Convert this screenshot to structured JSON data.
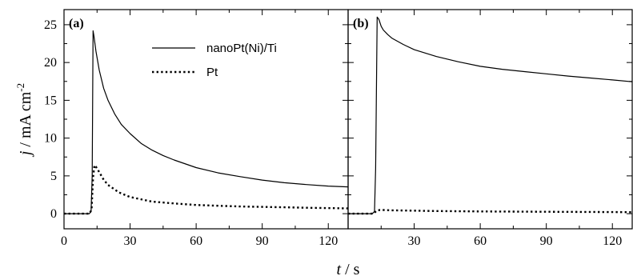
{
  "chart_data": [
    {
      "type": "line",
      "panel_label": "(a)",
      "xlabel_var": "t",
      "xlabel_unit": " / s",
      "ylabel_var": "j",
      "ylabel_unit": " / mA cm",
      "ylabel_exp": "-2",
      "xlim": [
        0,
        129
      ],
      "ylim": [
        -2,
        27
      ],
      "x_ticks": [
        0,
        30,
        60,
        90,
        120
      ],
      "y_ticks": [
        0,
        5,
        10,
        15,
        20,
        25
      ],
      "grid": false,
      "legend": {
        "position": "top-right"
      },
      "series": [
        {
          "name": "nanoPt(Ni)/Ti",
          "style": "solid",
          "color": "#000000",
          "points": [
            [
              0,
              0
            ],
            [
              11.5,
              0
            ],
            [
              12.3,
              0.3
            ],
            [
              12.8,
              5
            ],
            [
              13.2,
              24.2
            ],
            [
              13.6,
              23.5
            ],
            [
              14.5,
              21.5
            ],
            [
              16,
              19
            ],
            [
              18,
              16.6
            ],
            [
              20,
              15
            ],
            [
              23,
              13.2
            ],
            [
              26,
              11.8
            ],
            [
              30,
              10.6
            ],
            [
              35,
              9.3
            ],
            [
              40,
              8.4
            ],
            [
              45,
              7.7
            ],
            [
              50,
              7.1
            ],
            [
              60,
              6.1
            ],
            [
              70,
              5.4
            ],
            [
              80,
              4.9
            ],
            [
              90,
              4.45
            ],
            [
              100,
              4.1
            ],
            [
              110,
              3.85
            ],
            [
              120,
              3.65
            ],
            [
              129,
              3.55
            ]
          ]
        },
        {
          "name": "Pt",
          "style": "dotted",
          "color": "#000000",
          "points": [
            [
              0,
              0
            ],
            [
              11.5,
              0
            ],
            [
              12.5,
              0.5
            ],
            [
              13.2,
              4.8
            ],
            [
              13.8,
              6.4
            ],
            [
              14.5,
              6.2
            ],
            [
              16,
              5.5
            ],
            [
              18,
              4.5
            ],
            [
              20,
              3.8
            ],
            [
              25,
              2.8
            ],
            [
              30,
              2.2
            ],
            [
              40,
              1.6
            ],
            [
              50,
              1.35
            ],
            [
              60,
              1.15
            ],
            [
              70,
              1.05
            ],
            [
              80,
              0.95
            ],
            [
              90,
              0.9
            ],
            [
              100,
              0.85
            ],
            [
              110,
              0.78
            ],
            [
              120,
              0.74
            ],
            [
              129,
              0.7
            ]
          ]
        }
      ]
    },
    {
      "type": "line",
      "panel_label": "(b)",
      "xlim": [
        0,
        129
      ],
      "ylim": [
        -2,
        27
      ],
      "x_ticks": [
        0,
        30,
        60,
        90,
        120
      ],
      "grid": false,
      "series": [
        {
          "name": "nanoPt(Ni)/Ti",
          "style": "solid",
          "color": "#000000",
          "points": [
            [
              0,
              0
            ],
            [
              11,
              0
            ],
            [
              12,
              0.3
            ],
            [
              12.5,
              6
            ],
            [
              13.2,
              26
            ],
            [
              14,
              25.7
            ],
            [
              15,
              24.8
            ],
            [
              16,
              24.3
            ],
            [
              18,
              23.7
            ],
            [
              20,
              23.2
            ],
            [
              25,
              22.4
            ],
            [
              30,
              21.7
            ],
            [
              40,
              20.8
            ],
            [
              50,
              20.1
            ],
            [
              60,
              19.5
            ],
            [
              70,
              19.1
            ],
            [
              80,
              18.8
            ],
            [
              90,
              18.5
            ],
            [
              100,
              18.2
            ],
            [
              110,
              17.95
            ],
            [
              120,
              17.7
            ],
            [
              129,
              17.45
            ]
          ]
        },
        {
          "name": "Pt",
          "style": "dotted",
          "color": "#000000",
          "points": [
            [
              0,
              0
            ],
            [
              11.5,
              0
            ],
            [
              13,
              0.4
            ],
            [
              14.5,
              0.5
            ],
            [
              20,
              0.45
            ],
            [
              40,
              0.35
            ],
            [
              60,
              0.3
            ],
            [
              90,
              0.25
            ],
            [
              129,
              0.2
            ]
          ]
        }
      ]
    }
  ]
}
